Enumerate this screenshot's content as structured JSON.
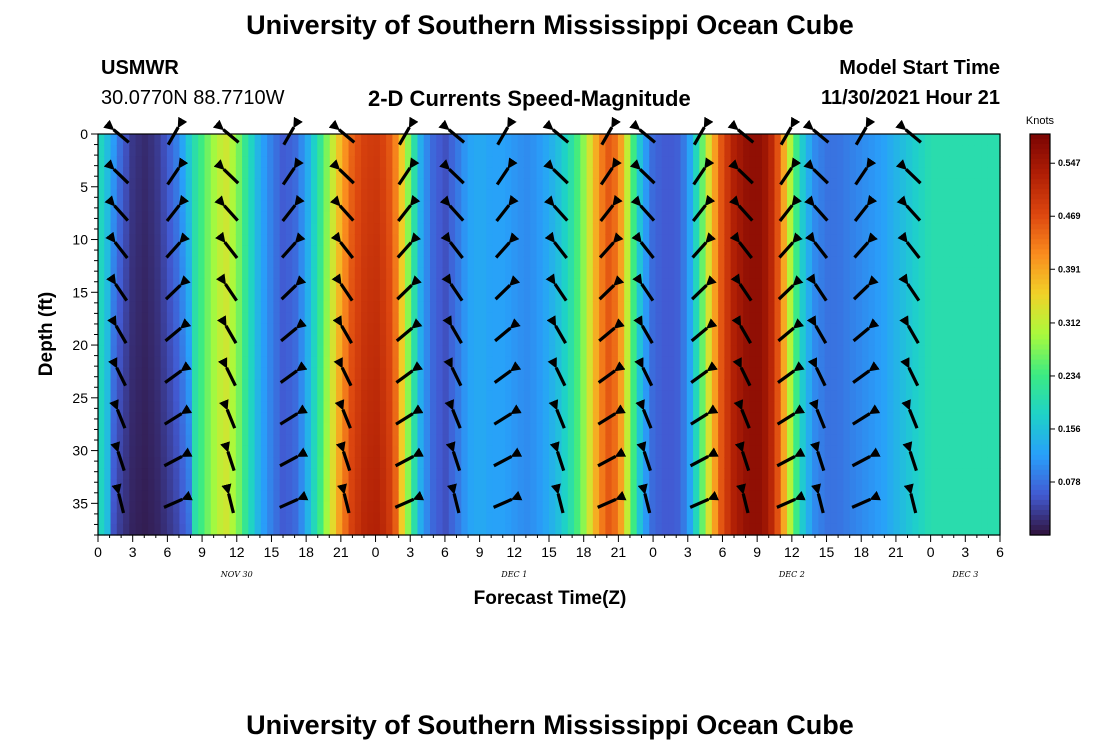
{
  "header": {
    "title": "University of Southern Mississippi Ocean Cube",
    "station": "USMWR",
    "coords": "30.0770N  88.7710W",
    "model_start_label": "Model Start Time",
    "model_start_value": "11/30/2021 Hour 21",
    "bottom_title": "University of Southern Mississippi Ocean Cube"
  },
  "chart_data": {
    "type": "heatmap",
    "title": "2-D Currents Speed-Magnitude",
    "xlabel": "Forecast Time(Z)",
    "ylabel": "Depth (ft)",
    "x_tick_labels": [
      "0",
      "3",
      "6",
      "9",
      "12",
      "15",
      "18",
      "21",
      "0",
      "3",
      "6",
      "9",
      "12",
      "15",
      "18",
      "21",
      "0",
      "3",
      "6",
      "9",
      "12",
      "15",
      "18",
      "21",
      "0",
      "3",
      "6"
    ],
    "day_labels": [
      {
        "text": "NOV 30",
        "tick_index": 4
      },
      {
        "text": "DEC 1",
        "tick_index": 12
      },
      {
        "text": "DEC 2",
        "tick_index": 20
      },
      {
        "text": "DEC 3",
        "tick_index": 25
      }
    ],
    "y_ticks": [
      0,
      5,
      10,
      15,
      20,
      25,
      30,
      35
    ],
    "ylim": [
      0,
      38
    ],
    "colorbar": {
      "title": "Knots",
      "ticks": [
        0.078,
        0.156,
        0.234,
        0.312,
        0.391,
        0.469,
        0.547
      ],
      "range": [
        0,
        0.59
      ]
    },
    "speed_by_hour": [
      [
        0,
        0.2
      ],
      [
        1,
        0.14
      ],
      [
        2,
        0.07
      ],
      [
        3,
        0.03
      ],
      [
        4,
        0.02
      ],
      [
        5,
        0.03
      ],
      [
        6,
        0.06
      ],
      [
        7,
        0.1
      ],
      [
        8,
        0.18
      ],
      [
        9,
        0.24
      ],
      [
        10,
        0.29
      ],
      [
        11,
        0.33
      ],
      [
        12,
        0.28
      ],
      [
        13,
        0.2
      ],
      [
        14,
        0.13
      ],
      [
        15,
        0.09
      ],
      [
        16,
        0.06
      ],
      [
        17,
        0.07
      ],
      [
        18,
        0.12
      ],
      [
        19,
        0.2
      ],
      [
        20,
        0.29
      ],
      [
        21,
        0.38
      ],
      [
        22,
        0.45
      ],
      [
        23,
        0.48
      ],
      [
        24,
        0.49
      ],
      [
        25,
        0.47
      ],
      [
        26,
        0.4
      ],
      [
        27,
        0.25
      ],
      [
        28,
        0.12
      ],
      [
        29,
        0.07
      ],
      [
        30,
        0.05
      ],
      [
        31,
        0.08
      ],
      [
        32,
        0.12
      ],
      [
        33,
        0.13
      ],
      [
        34,
        0.12
      ],
      [
        35,
        0.12
      ],
      [
        36,
        0.11
      ],
      [
        37,
        0.1
      ],
      [
        38,
        0.11
      ],
      [
        39,
        0.13
      ],
      [
        40,
        0.16
      ],
      [
        41,
        0.21
      ],
      [
        42,
        0.28
      ],
      [
        43,
        0.38
      ],
      [
        44,
        0.46
      ],
      [
        45,
        0.43
      ],
      [
        46,
        0.28
      ],
      [
        47,
        0.14
      ],
      [
        48,
        0.07
      ],
      [
        49,
        0.06
      ],
      [
        50,
        0.06
      ],
      [
        51,
        0.1
      ],
      [
        52,
        0.22
      ],
      [
        53,
        0.36
      ],
      [
        54,
        0.47
      ],
      [
        55,
        0.53
      ],
      [
        56,
        0.56
      ],
      [
        57,
        0.57
      ],
      [
        58,
        0.54
      ],
      [
        59,
        0.44
      ],
      [
        60,
        0.28
      ],
      [
        61,
        0.16
      ],
      [
        62,
        0.1
      ],
      [
        63,
        0.08
      ],
      [
        64,
        0.08
      ],
      [
        65,
        0.09
      ],
      [
        66,
        0.1
      ],
      [
        67,
        0.11
      ],
      [
        68,
        0.12
      ],
      [
        69,
        0.14
      ],
      [
        70,
        0.16
      ],
      [
        71,
        0.18
      ],
      [
        72,
        0.2
      ]
    ],
    "arrow_columns_hours": [
      2,
      6.5,
      11.5,
      16.5,
      21.5,
      26.5,
      31,
      35,
      40,
      44,
      47.5,
      52,
      56,
      59.5,
      62.5,
      66,
      70.5
    ],
    "arrow_rows_depth_ft": [
      0,
      4,
      7.5,
      11,
      15,
      19,
      23,
      27,
      31,
      35
    ]
  }
}
